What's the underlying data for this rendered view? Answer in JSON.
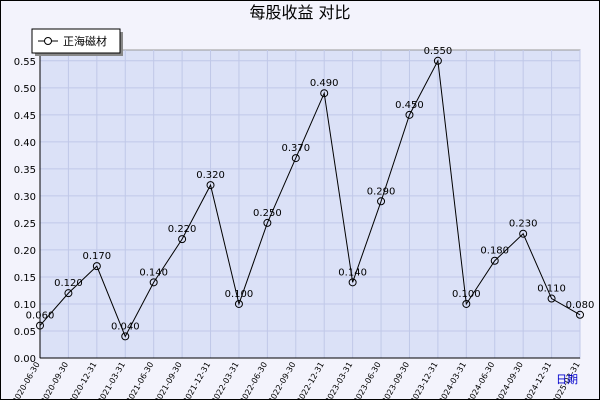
{
  "chart_data": {
    "type": "line",
    "title": "每股收益 对比",
    "x_label": "日期",
    "categories": [
      "2020-06-30",
      "2020-09-30",
      "2020-12-31",
      "2021-03-31",
      "2021-06-30",
      "2021-09-30",
      "2021-12-31",
      "2022-03-31",
      "2022-06-30",
      "2022-09-30",
      "2022-12-31",
      "2023-03-31",
      "2023-06-30",
      "2023-09-30",
      "2023-12-31",
      "2024-03-31",
      "2024-06-30",
      "2024-09-30",
      "2024-12-31",
      "2025-03-31"
    ],
    "series": [
      {
        "name": "正海磁材",
        "color": "#000000",
        "values": [
          0.06,
          0.12,
          0.17,
          0.04,
          0.14,
          0.22,
          0.32,
          0.1,
          0.25,
          0.37,
          0.49,
          0.14,
          0.29,
          0.45,
          0.55,
          0.1,
          0.18,
          0.23,
          0.11,
          0.08
        ],
        "value_labels": [
          "0.060",
          "0.120",
          "0.170",
          "0.040",
          "0.140",
          "0.220",
          "0.320",
          "0.100",
          "0.250",
          "0.370",
          "0.490",
          "0.140",
          "0.290",
          "0.450",
          "0.550",
          "0.100",
          "0.180",
          "0.230",
          "0.110",
          "0.080"
        ]
      }
    ],
    "ylim": [
      0,
      0.57
    ],
    "yticks": [
      {
        "value": 0,
        "label": "0.00"
      },
      0.05,
      {
        "value": 0.1,
        "label": "0.10"
      },
      0.15,
      {
        "value": 0.2,
        "label": "0.20"
      },
      0.25,
      {
        "value": 0.3,
        "label": "0.30"
      },
      0.35,
      {
        "value": 0.4,
        "label": "0.40"
      },
      0.45,
      {
        "value": 0.5,
        "label": "0.50"
      },
      0.55
    ],
    "grid": true,
    "legend": "upper left"
  }
}
